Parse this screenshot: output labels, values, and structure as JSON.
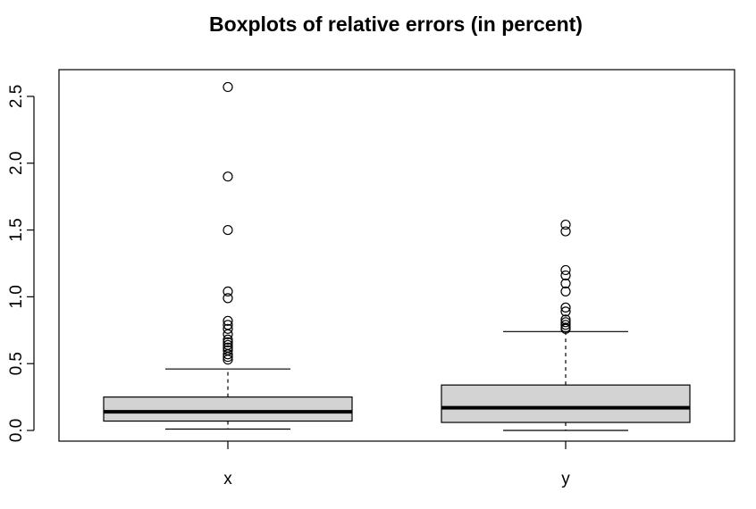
{
  "chart_data": {
    "type": "boxplot",
    "title": "Boxplots of relative errors (in percent)",
    "xlabel": "",
    "ylabel": "",
    "ylim": [
      -0.08,
      2.7
    ],
    "yticks": [
      "0.0",
      "0.5",
      "1.0",
      "1.5",
      "2.0",
      "2.5"
    ],
    "yticks_values": [
      0.0,
      0.5,
      1.0,
      1.5,
      2.0,
      2.5
    ],
    "categories": [
      "x",
      "y"
    ],
    "box_fill": "#d3d3d3",
    "series": [
      {
        "category": "x",
        "whisker_low": 0.01,
        "q1": 0.07,
        "median": 0.14,
        "q3": 0.25,
        "whisker_high": 0.46,
        "outliers": [
          2.57,
          1.9,
          1.5,
          1.04,
          0.99,
          0.82,
          0.79,
          0.76,
          0.72,
          0.68,
          0.66,
          0.64,
          0.62,
          0.6,
          0.57,
          0.55,
          0.53
        ]
      },
      {
        "category": "y",
        "whisker_low": 0.0,
        "q1": 0.06,
        "median": 0.17,
        "q3": 0.34,
        "whisker_high": 0.74,
        "outliers": [
          1.54,
          1.49,
          1.2,
          1.16,
          1.1,
          1.04,
          0.92,
          0.89,
          0.83,
          0.81,
          0.79,
          0.77,
          0.76
        ]
      }
    ]
  }
}
